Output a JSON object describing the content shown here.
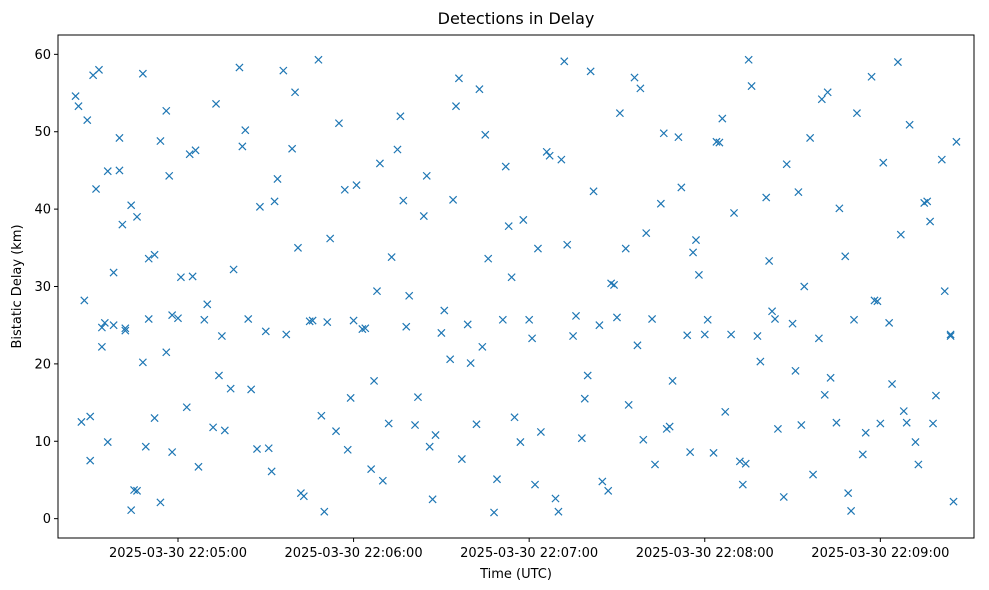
{
  "chart_data": {
    "type": "scatter",
    "title": "Detections in Delay",
    "xlabel": "Time (UTC)",
    "ylabel": "Bistatic Delay (km)",
    "marker": "x",
    "color": "#1f77b4",
    "x_axis_type": "time",
    "xlim": [
      "2025-03-30 22:04:19",
      "2025-03-30 22:09:32"
    ],
    "ylim": [
      -2.5,
      62.5
    ],
    "x_ticks": [
      {
        "value": "2025-03-30 22:05:00",
        "label": "2025-03-30 22:05:00"
      },
      {
        "value": "2025-03-30 22:06:00",
        "label": "2025-03-30 22:06:00"
      },
      {
        "value": "2025-03-30 22:07:00",
        "label": "2025-03-30 22:07:00"
      },
      {
        "value": "2025-03-30 22:08:00",
        "label": "2025-03-30 22:08:00"
      },
      {
        "value": "2025-03-30 22:09:00",
        "label": "2025-03-30 22:09:00"
      }
    ],
    "y_ticks": [
      0,
      10,
      20,
      30,
      40,
      50,
      60
    ],
    "grid": false,
    "legend": "none",
    "series": [
      {
        "x": [
          "2025-03-30 22:04:25",
          "2025-03-30 22:04:27",
          "2025-03-30 22:04:28",
          "2025-03-30 22:04:29",
          "2025-03-30 22:04:30",
          "2025-03-30 22:04:31",
          "2025-03-30 22:04:33",
          "2025-03-30 22:04:35",
          "2025-03-30 22:04:36",
          "2025-03-30 22:04:38",
          "2025-03-30 22:04:40",
          "2025-03-30 22:04:42",
          "2025-03-30 22:04:44",
          "2025-03-30 22:04:46",
          "2025-03-30 22:04:48",
          "2025-03-30 22:04:50",
          "2025-03-30 22:04:52",
          "2025-03-30 22:04:54",
          "2025-03-30 22:04:56",
          "2025-03-30 22:04:58",
          "2025-03-30 22:05:00",
          "2025-03-30 22:05:03",
          "2025-03-30 22:05:06",
          "2025-03-30 22:05:09",
          "2025-03-30 22:05:12",
          "2025-03-30 22:05:15",
          "2025-03-30 22:05:18",
          "2025-03-30 22:05:21",
          "2025-03-30 22:05:24",
          "2025-03-30 22:05:27",
          "2025-03-30 22:05:30",
          "2025-03-30 22:05:33",
          "2025-03-30 22:05:36",
          "2025-03-30 22:05:39",
          "2025-03-30 22:05:42",
          "2025-03-30 22:05:45",
          "2025-03-30 22:05:48",
          "2025-03-30 22:05:51",
          "2025-03-30 22:05:54",
          "2025-03-30 22:05:57",
          "2025-03-30 22:06:00",
          "2025-03-30 22:06:03",
          "2025-03-30 22:06:06",
          "2025-03-30 22:06:09",
          "2025-03-30 22:06:12",
          "2025-03-30 22:06:15",
          "2025-03-30 22:06:18",
          "2025-03-30 22:06:21",
          "2025-03-30 22:06:24",
          "2025-03-30 22:06:27",
          "2025-03-30 22:06:30",
          "2025-03-30 22:06:33",
          "2025-03-30 22:06:36",
          "2025-03-30 22:06:39",
          "2025-03-30 22:06:42",
          "2025-03-30 22:06:45",
          "2025-03-30 22:06:48",
          "2025-03-30 22:06:51",
          "2025-03-30 22:06:54",
          "2025-03-30 22:06:57",
          "2025-03-30 22:07:00",
          "2025-03-30 22:07:03",
          "2025-03-30 22:07:06",
          "2025-03-30 22:07:09",
          "2025-03-30 22:07:12",
          "2025-03-30 22:07:15",
          "2025-03-30 22:07:18",
          "2025-03-30 22:07:21",
          "2025-03-30 22:07:24",
          "2025-03-30 22:07:27",
          "2025-03-30 22:07:30",
          "2025-03-30 22:07:33",
          "2025-03-30 22:07:36",
          "2025-03-30 22:07:39",
          "2025-03-30 22:07:42",
          "2025-03-30 22:07:45",
          "2025-03-30 22:07:48",
          "2025-03-30 22:07:51",
          "2025-03-30 22:07:54",
          "2025-03-30 22:07:57",
          "2025-03-30 22:08:00",
          "2025-03-30 22:08:03",
          "2025-03-30 22:08:06",
          "2025-03-30 22:08:09",
          "2025-03-30 22:08:12",
          "2025-03-30 22:08:15",
          "2025-03-30 22:08:18",
          "2025-03-30 22:08:21",
          "2025-03-30 22:08:24",
          "2025-03-30 22:08:27",
          "2025-03-30 22:08:30",
          "2025-03-30 22:08:33",
          "2025-03-30 22:08:36",
          "2025-03-30 22:08:39",
          "2025-03-30 22:08:42",
          "2025-03-30 22:08:45",
          "2025-03-30 22:08:48",
          "2025-03-30 22:08:51",
          "2025-03-30 22:08:54",
          "2025-03-30 22:08:57",
          "2025-03-30 22:09:00",
          "2025-03-30 22:09:03",
          "2025-03-30 22:09:06",
          "2025-03-30 22:09:09",
          "2025-03-30 22:09:12",
          "2025-03-30 22:09:15",
          "2025-03-30 22:09:18",
          "2025-03-30 22:09:21",
          "2025-03-30 22:09:24",
          "2025-03-30 22:09:26",
          "2025-03-30 22:04:30",
          "2025-03-30 22:04:32",
          "2025-03-30 22:04:34",
          "2025-03-30 22:04:36",
          "2025-03-30 22:04:38",
          "2025-03-30 22:04:40",
          "2025-03-30 22:04:42",
          "2025-03-30 22:04:44",
          "2025-03-30 22:04:46",
          "2025-03-30 22:04:48",
          "2025-03-30 22:04:50",
          "2025-03-30 22:04:52",
          "2025-03-30 22:04:54",
          "2025-03-30 22:04:56",
          "2025-03-30 22:04:58",
          "2025-03-30 22:05:01",
          "2025-03-30 22:05:04",
          "2025-03-30 22:05:07",
          "2025-03-30 22:05:10",
          "2025-03-30 22:05:13",
          "2025-03-30 22:05:16",
          "2025-03-30 22:05:19",
          "2025-03-30 22:05:22",
          "2025-03-30 22:05:25",
          "2025-03-30 22:05:28",
          "2025-03-30 22:05:31",
          "2025-03-30 22:05:34",
          "2025-03-30 22:05:37",
          "2025-03-30 22:05:40",
          "2025-03-30 22:05:43",
          "2025-03-30 22:05:46",
          "2025-03-30 22:05:49",
          "2025-03-30 22:05:52",
          "2025-03-30 22:05:55",
          "2025-03-30 22:05:58",
          "2025-03-30 22:06:01",
          "2025-03-30 22:06:04",
          "2025-03-30 22:06:07",
          "2025-03-30 22:06:10",
          "2025-03-30 22:06:13",
          "2025-03-30 22:06:16",
          "2025-03-30 22:06:19",
          "2025-03-30 22:06:22",
          "2025-03-30 22:06:25",
          "2025-03-30 22:06:28",
          "2025-03-30 22:06:31",
          "2025-03-30 22:06:34",
          "2025-03-30 22:06:37",
          "2025-03-30 22:06:40",
          "2025-03-30 22:06:43",
          "2025-03-30 22:06:46",
          "2025-03-30 22:06:49",
          "2025-03-30 22:06:52",
          "2025-03-30 22:06:55",
          "2025-03-30 22:06:58",
          "2025-03-30 22:07:01",
          "2025-03-30 22:07:04",
          "2025-03-30 22:07:07",
          "2025-03-30 22:07:10",
          "2025-03-30 22:07:13",
          "2025-03-30 22:07:16",
          "2025-03-30 22:07:19",
          "2025-03-30 22:07:22",
          "2025-03-30 22:07:25",
          "2025-03-30 22:07:28",
          "2025-03-30 22:07:31",
          "2025-03-30 22:07:34",
          "2025-03-30 22:07:37",
          "2025-03-30 22:07:40",
          "2025-03-30 22:07:43",
          "2025-03-30 22:07:46",
          "2025-03-30 22:07:49",
          "2025-03-30 22:07:52",
          "2025-03-30 22:07:55",
          "2025-03-30 22:07:58",
          "2025-03-30 22:08:01",
          "2025-03-30 22:08:04",
          "2025-03-30 22:08:07",
          "2025-03-30 22:08:10",
          "2025-03-30 22:08:13",
          "2025-03-30 22:08:16",
          "2025-03-30 22:08:19",
          "2025-03-30 22:08:22",
          "2025-03-30 22:08:25",
          "2025-03-30 22:08:28",
          "2025-03-30 22:08:31",
          "2025-03-30 22:08:34",
          "2025-03-30 22:08:37",
          "2025-03-30 22:08:40",
          "2025-03-30 22:08:43",
          "2025-03-30 22:08:46",
          "2025-03-30 22:08:49",
          "2025-03-30 22:08:52",
          "2025-03-30 22:08:55",
          "2025-03-30 22:08:58",
          "2025-03-30 22:09:01",
          "2025-03-30 22:09:04",
          "2025-03-30 22:09:07",
          "2025-03-30 22:09:10",
          "2025-03-30 22:09:13",
          "2025-03-30 22:09:16",
          "2025-03-30 22:09:19",
          "2025-03-30 22:09:22",
          "2025-03-30 22:09:25",
          "2025-03-30 22:04:26",
          "2025-03-30 22:04:34",
          "2025-03-30 22:04:41",
          "2025-03-30 22:04:49",
          "2025-03-30 22:04:57",
          "2025-03-30 22:05:05",
          "2025-03-30 22:05:14",
          "2025-03-30 22:05:23",
          "2025-03-30 22:05:32",
          "2025-03-30 22:05:41",
          "2025-03-30 22:05:50",
          "2025-03-30 22:05:59",
          "2025-03-30 22:06:08",
          "2025-03-30 22:06:17",
          "2025-03-30 22:06:26",
          "2025-03-30 22:06:35",
          "2025-03-30 22:06:44",
          "2025-03-30 22:06:53",
          "2025-03-30 22:07:02",
          "2025-03-30 22:07:11",
          "2025-03-30 22:07:20",
          "2025-03-30 22:07:29",
          "2025-03-30 22:07:38",
          "2025-03-30 22:07:47",
          "2025-03-30 22:07:56",
          "2025-03-30 22:08:05",
          "2025-03-30 22:08:14",
          "2025-03-30 22:08:23",
          "2025-03-30 22:08:32",
          "2025-03-30 22:08:41",
          "2025-03-30 22:08:50",
          "2025-03-30 22:08:59",
          "2025-03-30 22:09:08",
          "2025-03-30 22:09:17",
          "2025-03-30 22:09:24",
          "2025-03-30 22:04:45"
        ],
        "y": [
          54.6,
          12.5,
          28.2,
          51.5,
          7.5,
          57.3,
          58.0,
          25.3,
          44.9,
          25.0,
          49.2,
          24.6,
          40.5,
          3.6,
          57.5,
          25.8,
          34.1,
          2.1,
          52.7,
          26.3,
          25.9,
          14.4,
          47.6,
          25.7,
          11.8,
          23.6,
          16.8,
          58.3,
          25.8,
          9.0,
          24.2,
          41.0,
          57.9,
          47.8,
          3.3,
          25.5,
          59.3,
          25.4,
          11.3,
          42.5,
          25.6,
          24.5,
          6.4,
          45.9,
          12.3,
          47.7,
          24.8,
          12.1,
          39.1,
          2.5,
          24.0,
          20.6,
          56.9,
          25.1,
          12.2,
          49.6,
          0.8,
          25.7,
          31.2,
          9.9,
          25.7,
          34.9,
          47.4,
          2.6,
          59.1,
          23.6,
          10.4,
          57.8,
          25.0,
          3.6,
          26.0,
          34.9,
          57.0,
          10.2,
          25.8,
          40.7,
          11.9,
          49.3,
          23.7,
          36.0,
          23.8,
          8.5,
          51.7,
          23.8,
          7.4,
          59.3,
          23.6,
          41.5,
          25.8,
          2.8,
          25.2,
          12.1,
          49.2,
          23.3,
          55.1,
          12.4,
          33.9,
          25.7,
          8.3,
          57.1,
          12.3,
          25.3,
          59.0,
          12.4,
          9.9,
          40.8,
          12.3,
          46.4,
          23.6,
          48.7,
          13.2,
          42.6,
          24.7,
          9.9,
          31.8,
          45.0,
          24.3,
          1.1,
          39.0,
          20.2,
          33.6,
          13.0,
          48.8,
          21.5,
          8.6,
          31.2,
          47.1,
          6.7,
          27.7,
          53.6,
          11.4,
          32.2,
          48.1,
          16.7,
          40.3,
          9.1,
          43.9,
          23.8,
          55.1,
          2.9,
          25.6,
          13.3,
          36.2,
          51.1,
          8.9,
          43.1,
          24.6,
          17.8,
          4.9,
          33.8,
          52.0,
          28.8,
          15.7,
          44.3,
          10.8,
          26.9,
          41.2,
          7.7,
          20.1,
          55.5,
          33.6,
          5.1,
          45.5,
          13.1,
          38.6,
          23.3,
          11.2,
          46.9,
          0.9,
          35.4,
          26.2,
          15.5,
          42.3,
          4.8,
          30.4,
          52.4,
          14.7,
          22.4,
          36.9,
          7.0,
          49.8,
          17.8,
          42.8,
          8.6,
          31.5,
          25.7,
          48.7,
          13.8,
          39.5,
          4.4,
          55.9,
          20.3,
          33.3,
          11.6,
          45.8,
          19.1,
          30.0,
          5.7,
          54.2,
          18.2,
          40.1,
          3.3,
          52.4,
          11.1,
          28.2,
          46.0,
          17.4,
          36.7,
          50.9,
          7.0,
          41.0,
          15.9,
          29.4,
          2.2,
          53.3,
          22.2,
          38.0,
          9.3,
          44.3,
          31.3,
          18.5,
          50.2,
          6.1,
          35.0,
          0.9,
          15.6,
          29.4,
          41.1,
          9.3,
          53.3,
          22.2,
          37.8,
          4.4,
          46.4,
          18.5,
          30.2,
          55.6,
          11.6,
          34.4,
          48.6,
          7.1,
          26.8,
          42.2,
          16.0,
          1.0,
          28.1,
          13.9,
          38.4,
          23.8,
          3.7
        ]
      }
    ]
  }
}
